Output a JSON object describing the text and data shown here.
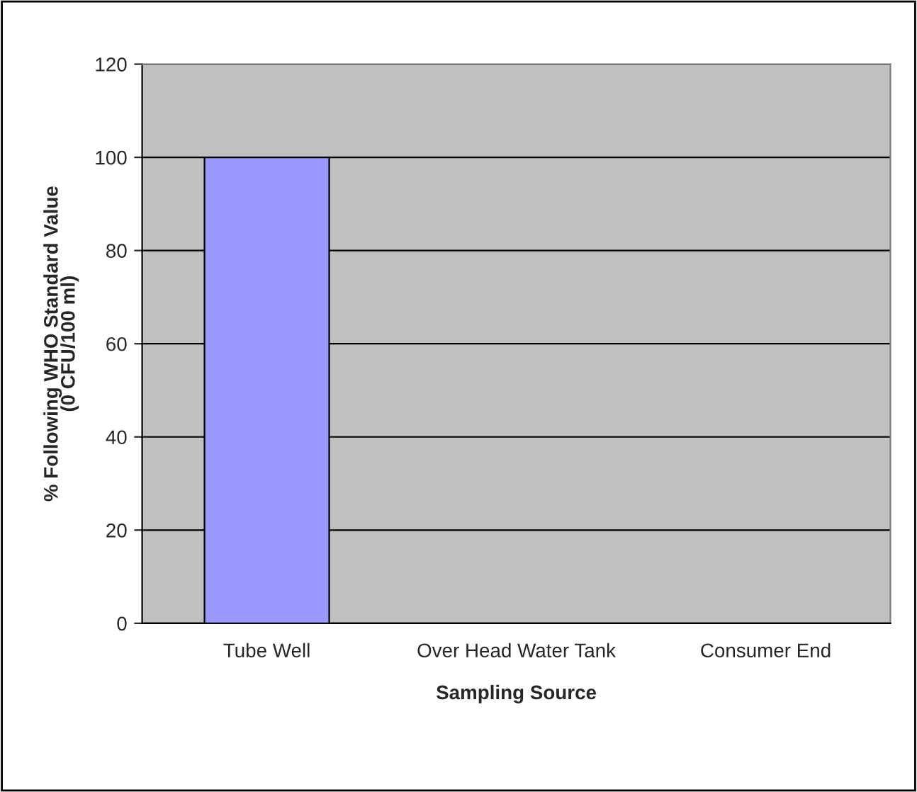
{
  "chart_data": {
    "type": "bar",
    "xlabel": "Sampling Source",
    "ylabel": "% Following WHO Standard Value\n(0 CFU/100 ml)",
    "categories": [
      "Tube Well",
      "Over Head Water Tank",
      "Consumer End"
    ],
    "values": [
      100,
      0,
      0
    ],
    "color": "#9999ff",
    "ylim": [
      0,
      120
    ],
    "yticks": [
      0,
      20,
      40,
      60,
      80,
      100,
      120
    ],
    "grid": "y"
  }
}
